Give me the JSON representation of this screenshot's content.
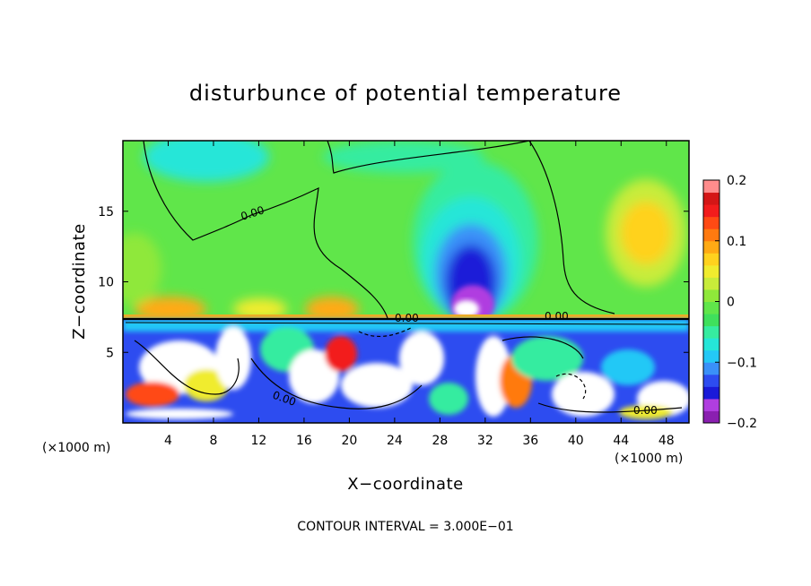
{
  "chart_data": {
    "type": "heatmap",
    "title": "disturbunce of potential temperature",
    "xlabel": "X−coordinate",
    "ylabel": "Z−coordinate",
    "x_unit_left": "(×1000 m)",
    "x_unit_right": "(×1000 m)",
    "xlim": [
      0,
      50
    ],
    "ylim": [
      0,
      20
    ],
    "x_ticks": [
      4,
      8,
      12,
      16,
      20,
      24,
      28,
      32,
      36,
      40,
      44,
      48
    ],
    "x_tick_labels": [
      "4",
      "8",
      "12",
      "16",
      "20",
      "24",
      "28",
      "32",
      "36",
      "40",
      "44",
      "48"
    ],
    "y_ticks": [
      5,
      10,
      15
    ],
    "y_tick_labels": [
      "5",
      "10",
      "15"
    ],
    "colorbar": {
      "range": [
        -0.2,
        0.2
      ],
      "tick_values": [
        0.2,
        0.1,
        0,
        -0.1,
        -0.2
      ],
      "tick_labels": [
        "0.2",
        "0.1",
        "0",
        "−0.1",
        "−0.2"
      ],
      "colors": [
        "#8a1fb0",
        "#b03ee0",
        "#1a1ad8",
        "#2d4cf0",
        "#3a90f8",
        "#24c8f6",
        "#25e6d8",
        "#36eca0",
        "#3fe05c",
        "#60e64a",
        "#8fe83a",
        "#c8ec3a",
        "#f0ec2e",
        "#ffd21e",
        "#ffaa14",
        "#ff7a10",
        "#ff4a14",
        "#f21c1c",
        "#d41616",
        "#ff8c8c"
      ]
    },
    "contour_labels": [
      "0.00",
      "0.00",
      "0.00",
      "0.00",
      "0.00"
    ],
    "contour_interval_text": "CONTOUR INTERVAL = 3.000E−01",
    "grid": false
  }
}
